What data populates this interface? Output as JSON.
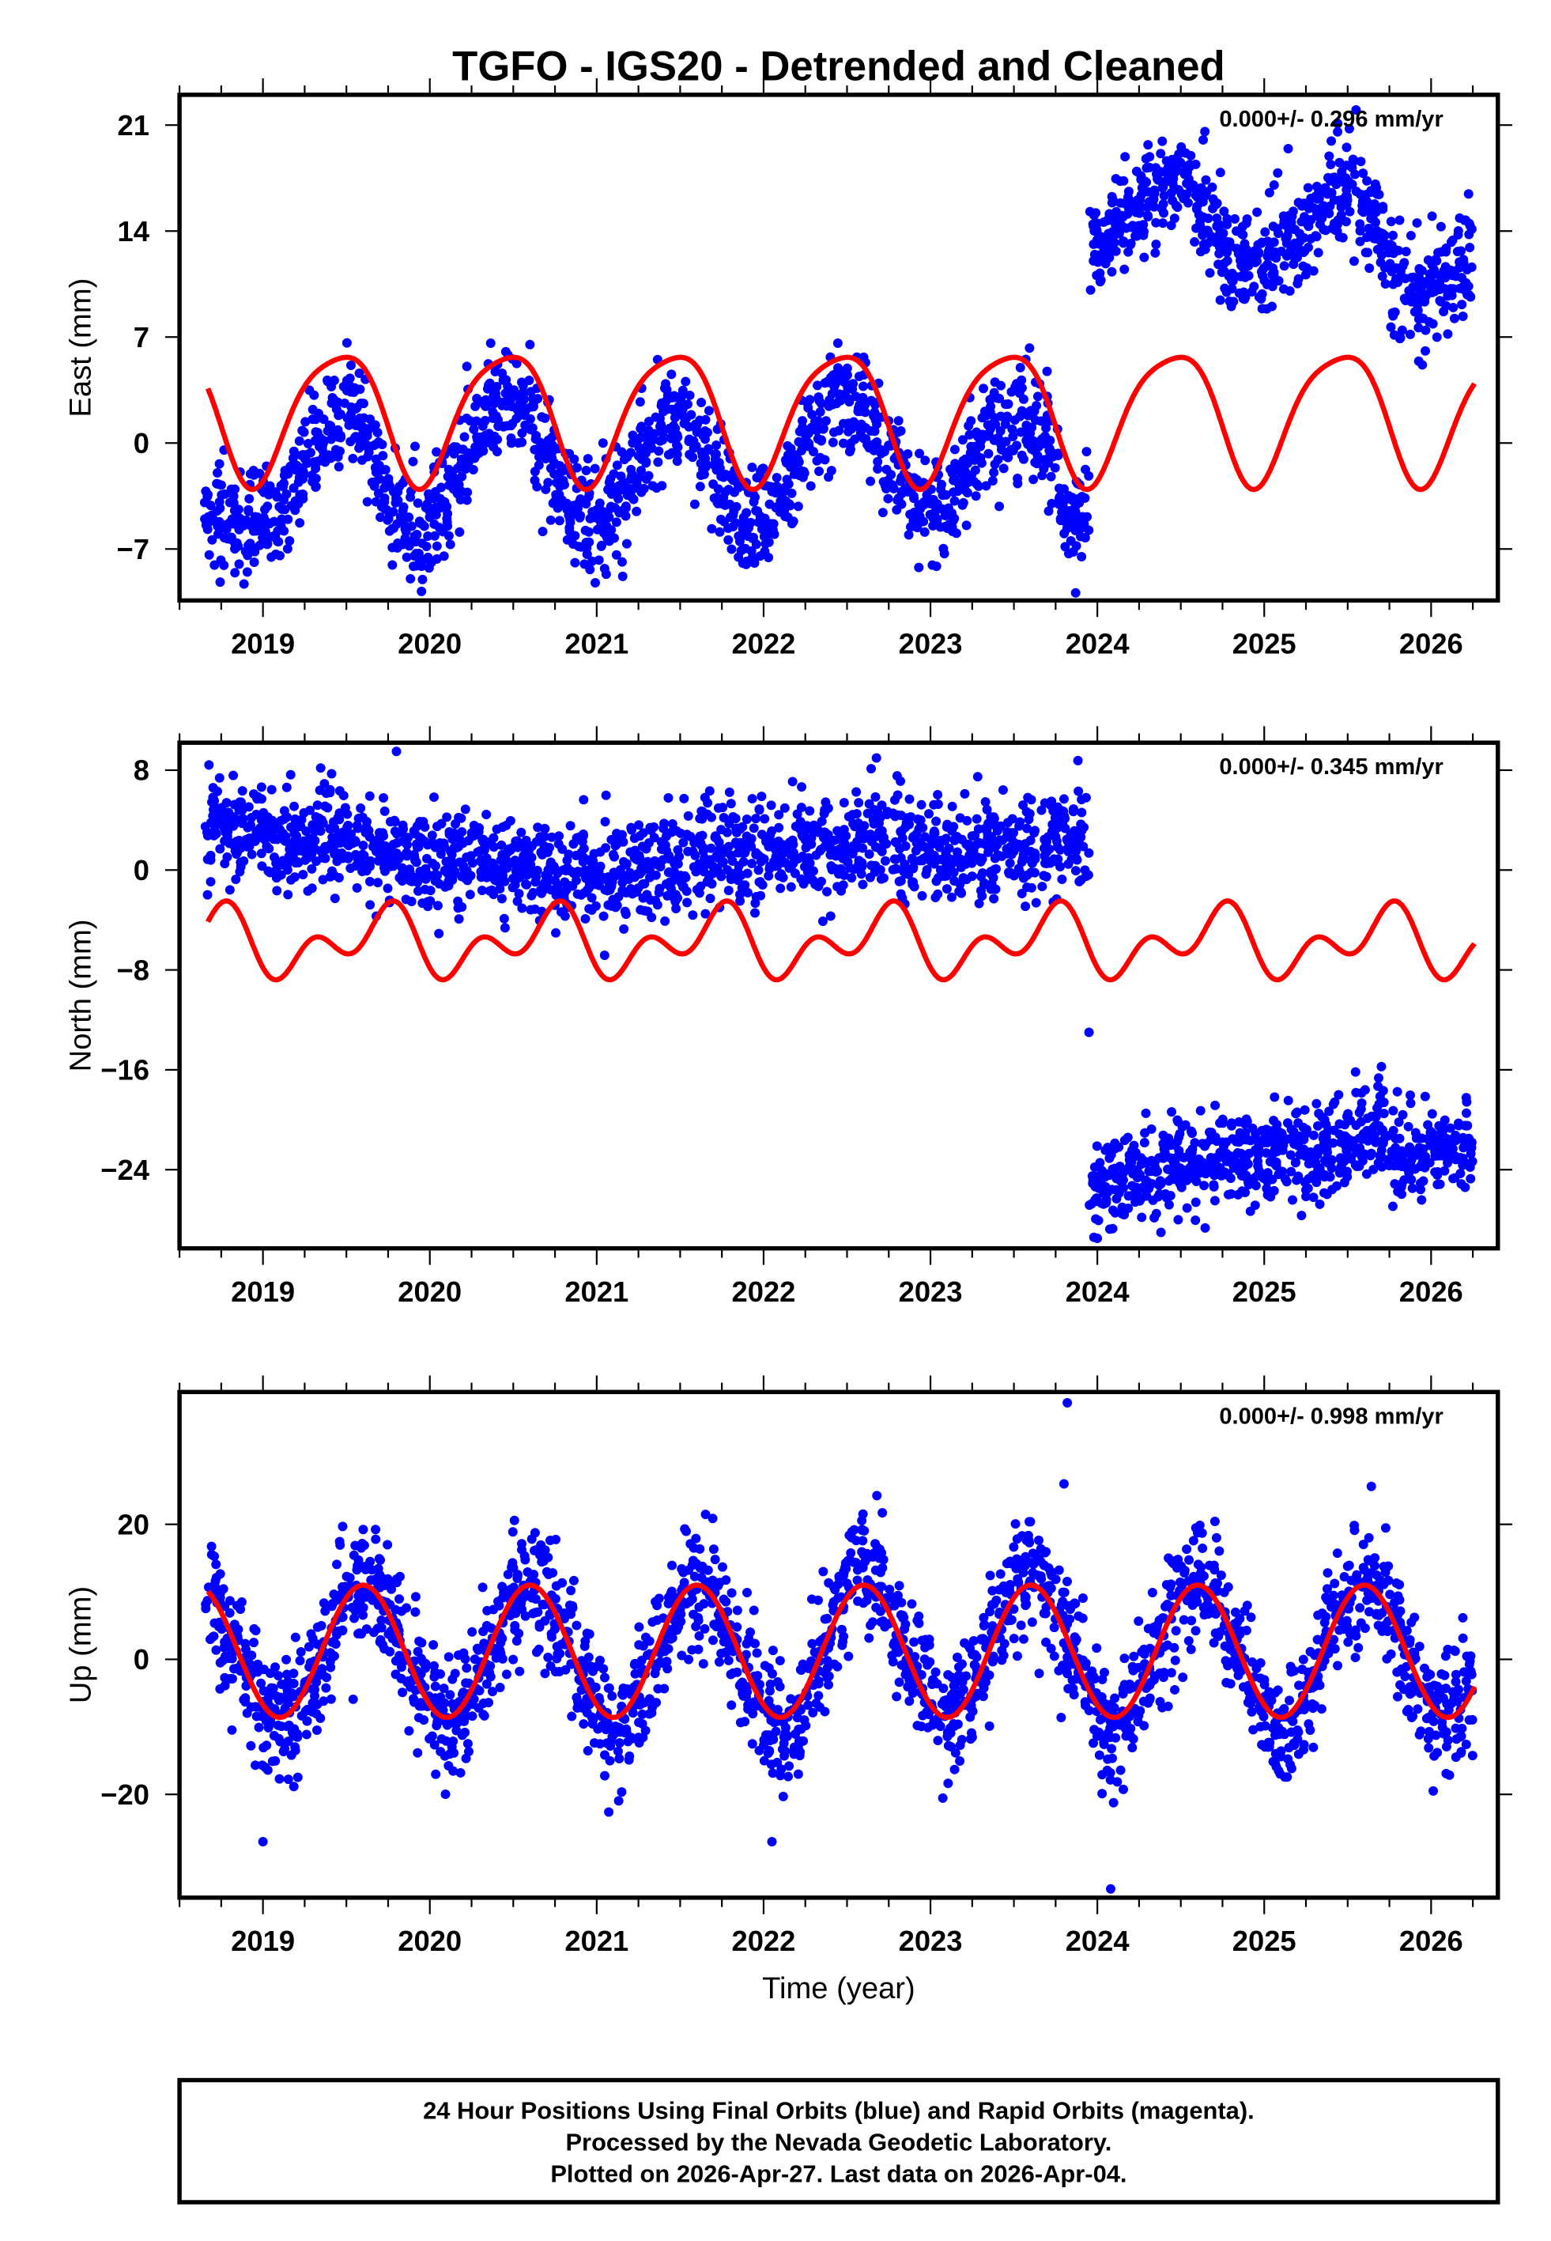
{
  "title": "TGFO - IGS20 - Detrended and Cleaned",
  "footer": {
    "lines": [
      "24 Hour Positions Using Final Orbits (blue) and Rapid Orbits (magenta).",
      "Processed by the Nevada Geodetic Laboratory.",
      "Plotted on 2026-Apr-27. Last data on 2026-Apr-04."
    ]
  },
  "colors": {
    "final_orbits": "#0000ff",
    "model": "#ff0000",
    "frame": "#000000"
  },
  "chart_data": [
    {
      "type": "scatter",
      "ylabel": "East (mm)",
      "xlabel": "",
      "xlim": [
        2018.5,
        2026.4
      ],
      "ylim": [
        -10.4,
        23
      ],
      "xticks": [
        2019,
        2020,
        2021,
        2022,
        2023,
        2024,
        2025,
        2026
      ],
      "xtick_labels": [
        "2019",
        "2020",
        "2021",
        "2022",
        "2023",
        "2024",
        "2025",
        "2026"
      ],
      "yticks": [
        -7,
        0,
        7,
        14,
        21
      ],
      "ytick_labels": [
        "−7",
        "0",
        "7",
        "14",
        "21"
      ],
      "rate_label": "0.000+/- 0.296 mm/yr",
      "positions": {
        "name": "Daily positions (final orbits)",
        "x_start": 2018.7,
        "x_step": 0.1,
        "mean": [
          -4.5,
          -5.5,
          -6,
          -5.5,
          -4.5,
          -2.5,
          -0.5,
          1,
          2,
          1,
          -2,
          -4,
          -6,
          -5.5,
          -4,
          -1.5,
          0.5,
          2.5,
          3,
          2,
          -1,
          -3,
          -5,
          -5.5,
          -4.5,
          -2.5,
          -0.5,
          1.5,
          1.5,
          0,
          -2,
          -3.5,
          -5.5,
          -5,
          -4,
          -1.5,
          1,
          3,
          3,
          2,
          0,
          -2,
          -4,
          -4.5,
          -4,
          -2,
          -0.5,
          1,
          1.5,
          1.5,
          0.5,
          -4.5,
          -4.5,
          13,
          14.5,
          15,
          16,
          17,
          17.5,
          16,
          14.5,
          12,
          11.5,
          12,
          13,
          13.5,
          15,
          16.5,
          17,
          16,
          14,
          9.5,
          9.5,
          10,
          11,
          12
        ],
        "spread_mm": 1.8,
        "outliers": [
          [
            2019.95,
            -9.8
          ],
          [
            2020.6,
            6.5
          ],
          [
            2025.55,
            22
          ]
        ]
      },
      "model": {
        "name": "Seasonal model",
        "x_range": [
          2018.67,
          2026.26
        ],
        "offset": 2.0,
        "annual_amp": 4.3,
        "annual_peak": 0.45,
        "semiannual_amp": 0.8,
        "semiannual_peak": 0.17
      }
    },
    {
      "type": "scatter",
      "ylabel": "North (mm)",
      "xlabel": "",
      "xlim": [
        2018.5,
        2026.4
      ],
      "ylim": [
        -30.3,
        10.2
      ],
      "xticks": [
        2019,
        2020,
        2021,
        2022,
        2023,
        2024,
        2025,
        2026
      ],
      "xtick_labels": [
        "2019",
        "2020",
        "2021",
        "2022",
        "2023",
        "2024",
        "2025",
        "2026"
      ],
      "yticks": [
        -24,
        -16,
        -8,
        0,
        8
      ],
      "ytick_labels": [
        "−24",
        "−16",
        "−8",
        "0",
        "8"
      ],
      "rate_label": "0.000+/- 0.345 mm/yr",
      "positions": {
        "name": "Daily positions (final orbits)",
        "x_start": 2018.7,
        "x_step": 0.1,
        "mean": [
          3.5,
          3.5,
          3,
          3,
          2.5,
          2.5,
          2.5,
          3,
          2.5,
          2,
          1.5,
          1.5,
          1.5,
          1,
          1,
          0.5,
          0.5,
          0.5,
          0.5,
          0,
          0,
          0,
          0,
          -0.5,
          -0.5,
          0,
          0,
          0.5,
          0.5,
          1,
          1,
          1.5,
          1.5,
          1.5,
          1.5,
          1.5,
          1.5,
          2,
          2,
          2.5,
          2.5,
          2.5,
          2,
          1.5,
          1,
          1,
          1,
          1,
          1.5,
          2,
          2.5,
          3,
          3,
          -25.5,
          -25,
          -24.5,
          -24.5,
          -24,
          -23.5,
          -23,
          -23,
          -22.5,
          -23,
          -23,
          -22.5,
          -22.5,
          -23.5,
          -23,
          -22,
          -20.5,
          -20.5,
          -22.5,
          -23,
          -23,
          -22.5,
          -22.5
        ],
        "spread_mm": 2.0,
        "outliers": [
          [
            2019.8,
            9.5
          ],
          [
            2023.95,
            -13
          ],
          [
            2024.0,
            -29.5
          ]
        ]
      },
      "model": {
        "name": "Seasonal model",
        "x_range": [
          2018.67,
          2026.26
        ],
        "offset": -5.8,
        "annual_amp": 1.8,
        "annual_peak": 0.7,
        "semiannual_amp": 1.8,
        "semiannual_peak": 0.3
      }
    },
    {
      "type": "scatter",
      "ylabel": "Up (mm)",
      "xlabel": "Time (year)",
      "xlim": [
        2018.5,
        2026.4
      ],
      "ylim": [
        -35.3,
        39.6
      ],
      "xticks": [
        2019,
        2020,
        2021,
        2022,
        2023,
        2024,
        2025,
        2026
      ],
      "xtick_labels": [
        "2019",
        "2020",
        "2021",
        "2022",
        "2023",
        "2024",
        "2025",
        "2026"
      ],
      "yticks": [
        -20,
        0,
        20
      ],
      "ytick_labels": [
        "−20",
        "0",
        "20"
      ],
      "rate_label": "0.000+/- 0.998 mm/yr",
      "positions": {
        "name": "Daily positions (final orbits)",
        "x_start": 2018.7,
        "x_step": 0.1,
        "mean": [
          9,
          4,
          -2,
          -7,
          -10,
          -8,
          -3,
          3,
          9,
          12,
          10,
          4,
          -2,
          -7,
          -10,
          -8,
          -3,
          3,
          9,
          11,
          9,
          4,
          -2,
          -7,
          -11,
          -9,
          -3,
          3,
          9,
          11,
          9,
          4,
          -2,
          -7,
          -11,
          -9,
          -3,
          4,
          11,
          14,
          11,
          5,
          -1,
          -6,
          -10,
          -7,
          -2,
          5,
          11,
          14,
          11,
          5,
          -1,
          -7,
          -11,
          -8,
          -2,
          4,
          10,
          12,
          9,
          4,
          -2,
          -7,
          -12,
          -9,
          -2,
          4,
          9,
          11,
          9,
          3,
          -3,
          -6,
          -8,
          -5
        ],
        "spread_mm": 4.5,
        "outliers": [
          [
            2023.82,
            38
          ],
          [
            2024.08,
            -34
          ],
          [
            2019.0,
            -27
          ],
          [
            2022.05,
            -27
          ],
          [
            2023.8,
            26
          ]
        ]
      },
      "model": {
        "name": "Seasonal model",
        "x_range": [
          2018.67,
          2026.26
        ],
        "offset": 1.2,
        "annual_amp": 9.8,
        "annual_peak": 0.6,
        "semiannual_amp": 0,
        "semiannual_peak": 0
      }
    }
  ]
}
